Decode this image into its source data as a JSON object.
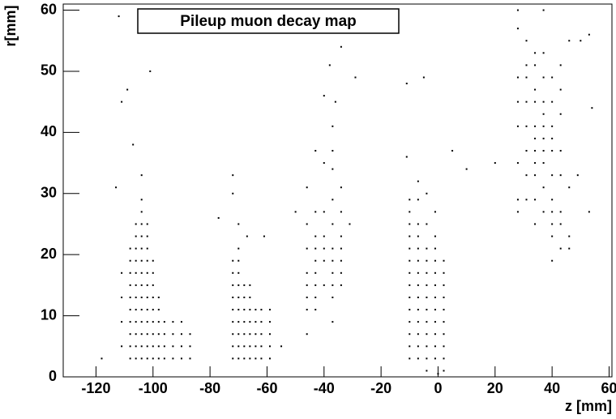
{
  "chart_data": {
    "type": "scatter",
    "title": "Pileup muon decay map",
    "x_label": "z [mm]",
    "y_label": "r[mm]",
    "color": "#000000",
    "xlim": [
      -131.5,
      61
    ],
    "ylim": [
      0,
      61
    ],
    "xticks": [
      -120,
      -100,
      -80,
      -60,
      -40,
      -20,
      0,
      20,
      40,
      60
    ],
    "yticks": [
      0,
      10,
      20,
      30,
      40,
      50,
      60
    ],
    "x": [
      -111,
      -111,
      -111,
      -111,
      -108,
      -108,
      -108,
      -108,
      -108,
      -108,
      -108,
      -108,
      -108,
      -108,
      -106,
      -106,
      -106,
      -106,
      -106,
      -106,
      -106,
      -106,
      -106,
      -106,
      -106,
      -106,
      -104,
      -104,
      -104,
      -104,
      -104,
      -104,
      -104,
      -104,
      -104,
      -104,
      -104,
      -104,
      -104,
      -104,
      -104,
      -102,
      -102,
      -102,
      -102,
      -102,
      -102,
      -102,
      -102,
      -102,
      -102,
      -102,
      -102,
      -100,
      -100,
      -100,
      -100,
      -100,
      -100,
      -100,
      -100,
      -100,
      -98,
      -98,
      -98,
      -98,
      -98,
      -98,
      -96,
      -96,
      -96,
      -96,
      -93,
      -93,
      -93,
      -93,
      -90,
      -90,
      -90,
      -90,
      -87,
      -87,
      -87,
      -113,
      -111,
      -109,
      -107,
      -101,
      -112,
      -118,
      -72,
      -72,
      -72,
      -72,
      -72,
      -72,
      -72,
      -72,
      -72,
      -70,
      -70,
      -70,
      -70,
      -70,
      -70,
      -70,
      -70,
      -70,
      -70,
      -70,
      -68,
      -68,
      -68,
      -68,
      -68,
      -68,
      -68,
      -66,
      -66,
      -66,
      -66,
      -66,
      -66,
      -66,
      -64,
      -64,
      -64,
      -64,
      -64,
      -62,
      -62,
      -62,
      -62,
      -62,
      -59,
      -59,
      -59,
      -59,
      -59,
      -72,
      -72,
      -77,
      -67,
      -61,
      -55,
      -50,
      -46,
      -46,
      -46,
      -46,
      -46,
      -46,
      -46,
      -46,
      -43,
      -43,
      -43,
      -43,
      -43,
      -43,
      -43,
      -43,
      -43,
      -40,
      -40,
      -40,
      -40,
      -40,
      -40,
      -40,
      -37,
      -37,
      -37,
      -37,
      -37,
      -37,
      -37,
      -37,
      -37,
      -37,
      -37,
      -34,
      -34,
      -34,
      -34,
      -34,
      -34,
      -34,
      -38,
      -34,
      -36,
      -29,
      -31,
      -10,
      -10,
      -10,
      -10,
      -10,
      -10,
      -10,
      -10,
      -10,
      -10,
      -10,
      -10,
      -10,
      -10,
      -7,
      -7,
      -7,
      -7,
      -7,
      -7,
      -7,
      -7,
      -7,
      -7,
      -7,
      -7,
      -7,
      -7,
      -4,
      -4,
      -4,
      -4,
      -4,
      -4,
      -4,
      -4,
      -4,
      -4,
      -4,
      -4,
      -4,
      -1,
      -1,
      -1,
      -1,
      -1,
      -1,
      -1,
      -1,
      -1,
      -1,
      -1,
      -1,
      2,
      2,
      2,
      2,
      2,
      2,
      2,
      2,
      2,
      2,
      -11,
      -11,
      -5,
      5,
      10,
      0,
      28,
      28,
      28,
      28,
      28,
      28,
      28,
      28,
      31,
      31,
      31,
      31,
      31,
      31,
      31,
      31,
      34,
      34,
      34,
      34,
      34,
      34,
      34,
      34,
      34,
      34,
      34,
      37,
      37,
      37,
      37,
      37,
      37,
      37,
      37,
      37,
      37,
      40,
      40,
      40,
      40,
      40,
      40,
      40,
      40,
      40,
      40,
      40,
      43,
      43,
      43,
      43,
      43,
      43,
      43,
      43,
      46,
      46,
      46,
      46,
      37,
      50,
      53,
      54,
      53,
      49,
      20
    ],
    "values": [
      5,
      9,
      13,
      17,
      3,
      5,
      7,
      9,
      11,
      13,
      15,
      17,
      19,
      21,
      3,
      5,
      7,
      9,
      11,
      13,
      15,
      17,
      19,
      21,
      23,
      25,
      3,
      5,
      7,
      9,
      11,
      13,
      15,
      17,
      19,
      21,
      23,
      25,
      27,
      29,
      33,
      3,
      5,
      7,
      9,
      11,
      13,
      15,
      17,
      19,
      21,
      23,
      25,
      3,
      5,
      7,
      9,
      11,
      13,
      15,
      17,
      19,
      3,
      5,
      7,
      9,
      11,
      13,
      3,
      5,
      7,
      9,
      3,
      5,
      7,
      9,
      3,
      5,
      7,
      9,
      3,
      5,
      7,
      31,
      45,
      47,
      38,
      50,
      59,
      3,
      3,
      5,
      7,
      9,
      11,
      13,
      15,
      17,
      19,
      3,
      5,
      7,
      9,
      11,
      13,
      15,
      17,
      19,
      21,
      25,
      3,
      5,
      7,
      9,
      11,
      13,
      15,
      3,
      5,
      7,
      9,
      11,
      13,
      15,
      3,
      5,
      7,
      9,
      11,
      3,
      5,
      7,
      9,
      11,
      3,
      5,
      7,
      9,
      11,
      30,
      33,
      26,
      23,
      23,
      5,
      27,
      7,
      11,
      13,
      15,
      17,
      21,
      25,
      31,
      11,
      13,
      15,
      17,
      19,
      21,
      23,
      27,
      37,
      15,
      19,
      21,
      23,
      27,
      35,
      46,
      9,
      13,
      15,
      17,
      19,
      21,
      25,
      29,
      34,
      37,
      41,
      15,
      17,
      19,
      21,
      23,
      27,
      31,
      51,
      54,
      45,
      49,
      25,
      3,
      5,
      7,
      9,
      11,
      13,
      15,
      17,
      19,
      21,
      23,
      25,
      27,
      29,
      3,
      5,
      7,
      9,
      11,
      13,
      15,
      17,
      19,
      21,
      23,
      25,
      29,
      32,
      1,
      3,
      5,
      7,
      9,
      11,
      13,
      15,
      17,
      19,
      21,
      25,
      30,
      3,
      5,
      7,
      9,
      11,
      13,
      15,
      17,
      19,
      21,
      23,
      27,
      1,
      3,
      5,
      7,
      9,
      11,
      13,
      15,
      17,
      19,
      48,
      36,
      49,
      37,
      34,
      0.5,
      27,
      29,
      35,
      41,
      45,
      49,
      57,
      60,
      29,
      33,
      37,
      41,
      45,
      49,
      51,
      55,
      25,
      29,
      33,
      35,
      37,
      39,
      41,
      45,
      47,
      51,
      53,
      27,
      31,
      35,
      37,
      39,
      41,
      43,
      45,
      49,
      53,
      19,
      23,
      25,
      27,
      29,
      33,
      37,
      39,
      41,
      45,
      49,
      21,
      25,
      27,
      33,
      37,
      43,
      47,
      51,
      21,
      23,
      31,
      55,
      60,
      55,
      56,
      44,
      27,
      33,
      35
    ]
  }
}
